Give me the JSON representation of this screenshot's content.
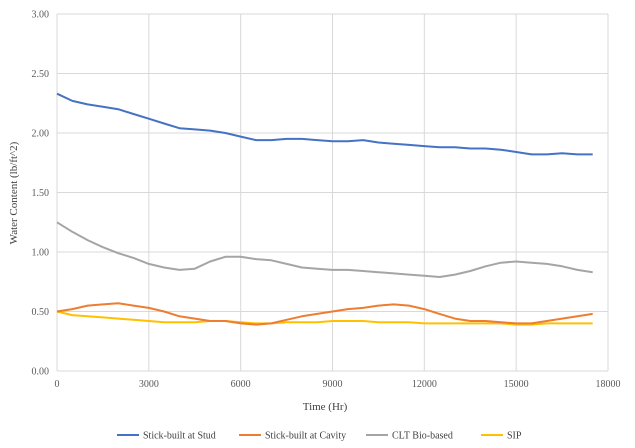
{
  "chart_data": {
    "type": "line",
    "title": "",
    "xlabel": "Time (Hr)",
    "ylabel": "Water Content (lb/ft^2)",
    "xlim": [
      0,
      18000
    ],
    "ylim": [
      0,
      3.0
    ],
    "x_ticks": [
      "0",
      "3000",
      "6000",
      "9000",
      "12000",
      "15000",
      "18000"
    ],
    "y_ticks": [
      "0.00",
      "0.50",
      "1.00",
      "1.50",
      "2.00",
      "2.50",
      "3.00"
    ],
    "grid": true,
    "legend_position": "bottom",
    "series": [
      {
        "name": "Stick-built at Stud",
        "color": "#4472C4",
        "x": [
          0,
          500,
          1000,
          1500,
          2000,
          2500,
          3000,
          3500,
          4000,
          4500,
          5000,
          5500,
          6000,
          6500,
          7000,
          7500,
          8000,
          8500,
          9000,
          9500,
          10000,
          10500,
          11000,
          11500,
          12000,
          12500,
          13000,
          13500,
          14000,
          14500,
          15000,
          15500,
          16000,
          16500,
          17000,
          17500
        ],
        "values": [
          2.33,
          2.27,
          2.24,
          2.22,
          2.2,
          2.16,
          2.12,
          2.08,
          2.04,
          2.03,
          2.02,
          2.0,
          1.97,
          1.94,
          1.94,
          1.95,
          1.95,
          1.94,
          1.93,
          1.93,
          1.94,
          1.92,
          1.91,
          1.9,
          1.89,
          1.88,
          1.88,
          1.87,
          1.87,
          1.86,
          1.84,
          1.82,
          1.82,
          1.83,
          1.82,
          1.82
        ]
      },
      {
        "name": "Stick-built at Cavity",
        "color": "#ED7D31",
        "x": [
          0,
          500,
          1000,
          1500,
          2000,
          2500,
          3000,
          3500,
          4000,
          4500,
          5000,
          5500,
          6000,
          6500,
          7000,
          7500,
          8000,
          8500,
          9000,
          9500,
          10000,
          10500,
          11000,
          11500,
          12000,
          12500,
          13000,
          13500,
          14000,
          14500,
          15000,
          15500,
          16000,
          16500,
          17000,
          17500
        ],
        "values": [
          0.5,
          0.52,
          0.55,
          0.56,
          0.57,
          0.55,
          0.53,
          0.5,
          0.46,
          0.44,
          0.42,
          0.42,
          0.4,
          0.39,
          0.4,
          0.43,
          0.46,
          0.48,
          0.5,
          0.52,
          0.53,
          0.55,
          0.56,
          0.55,
          0.52,
          0.48,
          0.44,
          0.42,
          0.42,
          0.41,
          0.4,
          0.4,
          0.42,
          0.44,
          0.46,
          0.48
        ]
      },
      {
        "name": "CLT Bio-based",
        "color": "#A5A5A5",
        "x": [
          0,
          500,
          1000,
          1500,
          2000,
          2500,
          3000,
          3500,
          4000,
          4500,
          5000,
          5500,
          6000,
          6500,
          7000,
          7500,
          8000,
          8500,
          9000,
          9500,
          10000,
          10500,
          11000,
          11500,
          12000,
          12500,
          13000,
          13500,
          14000,
          14500,
          15000,
          15500,
          16000,
          16500,
          17000,
          17500
        ],
        "values": [
          1.25,
          1.17,
          1.1,
          1.04,
          0.99,
          0.95,
          0.9,
          0.87,
          0.85,
          0.86,
          0.92,
          0.96,
          0.96,
          0.94,
          0.93,
          0.9,
          0.87,
          0.86,
          0.85,
          0.85,
          0.84,
          0.83,
          0.82,
          0.81,
          0.8,
          0.79,
          0.81,
          0.84,
          0.88,
          0.91,
          0.92,
          0.91,
          0.9,
          0.88,
          0.85,
          0.83
        ]
      },
      {
        "name": "SIP",
        "color": "#FFC000",
        "x": [
          0,
          500,
          1000,
          1500,
          2000,
          2500,
          3000,
          3500,
          4000,
          4500,
          5000,
          5500,
          6000,
          6500,
          7000,
          7500,
          8000,
          8500,
          9000,
          9500,
          10000,
          10500,
          11000,
          11500,
          12000,
          12500,
          13000,
          13500,
          14000,
          14500,
          15000,
          15500,
          16000,
          16500,
          17000,
          17500
        ],
        "values": [
          0.5,
          0.47,
          0.46,
          0.45,
          0.44,
          0.43,
          0.42,
          0.41,
          0.41,
          0.41,
          0.42,
          0.42,
          0.41,
          0.4,
          0.4,
          0.41,
          0.41,
          0.41,
          0.42,
          0.42,
          0.42,
          0.41,
          0.41,
          0.41,
          0.4,
          0.4,
          0.4,
          0.4,
          0.4,
          0.4,
          0.39,
          0.39,
          0.4,
          0.4,
          0.4,
          0.4
        ]
      }
    ]
  }
}
